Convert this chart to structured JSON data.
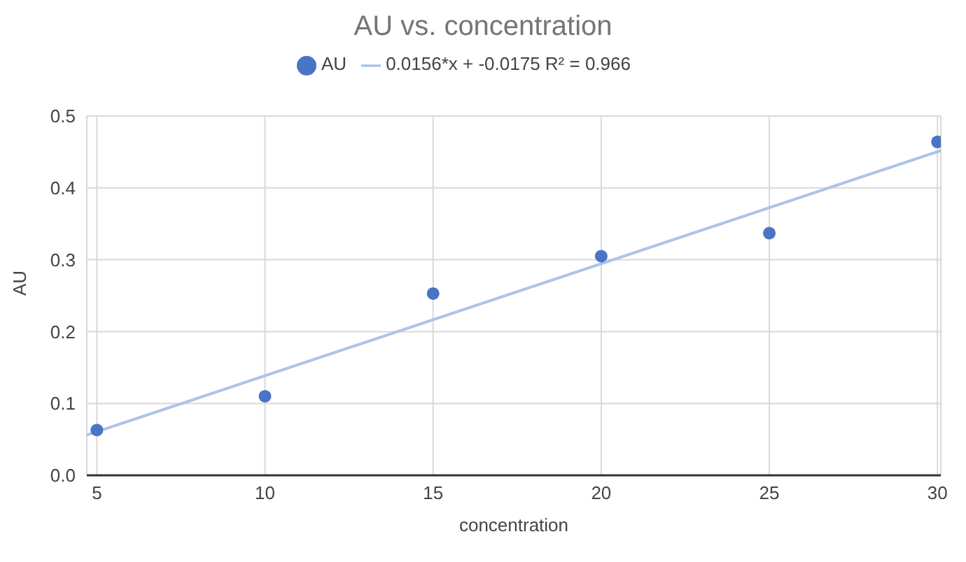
{
  "chart_data": {
    "type": "scatter",
    "title": "AU vs. concentration",
    "xlabel": "concentration",
    "ylabel": "AU",
    "x": [
      5,
      10,
      15,
      20,
      25,
      30
    ],
    "series": [
      {
        "name": "AU",
        "color": "#4a74c4",
        "values": [
          0.063,
          0.11,
          0.253,
          0.305,
          0.337,
          0.464
        ],
        "marker": "circle"
      },
      {
        "name": "0.0156*x + -0.0175 R² = 0.966",
        "type": "line",
        "color": "#a9c4ee",
        "x": [
          4.7,
          30.1
        ],
        "values": [
          0.056,
          0.452
        ],
        "marker": "none",
        "line_style": "solid"
      }
    ],
    "xlim": [
      4.7,
      30.1
    ],
    "xticks": [
      5,
      10,
      15,
      20,
      25,
      30
    ],
    "ylim": [
      0,
      0.5
    ],
    "yticks": [
      {
        "value": 0,
        "label": "0.0"
      },
      0.1,
      0.2,
      0.3,
      0.4,
      0.5
    ],
    "grid": true,
    "legend": "top"
  }
}
